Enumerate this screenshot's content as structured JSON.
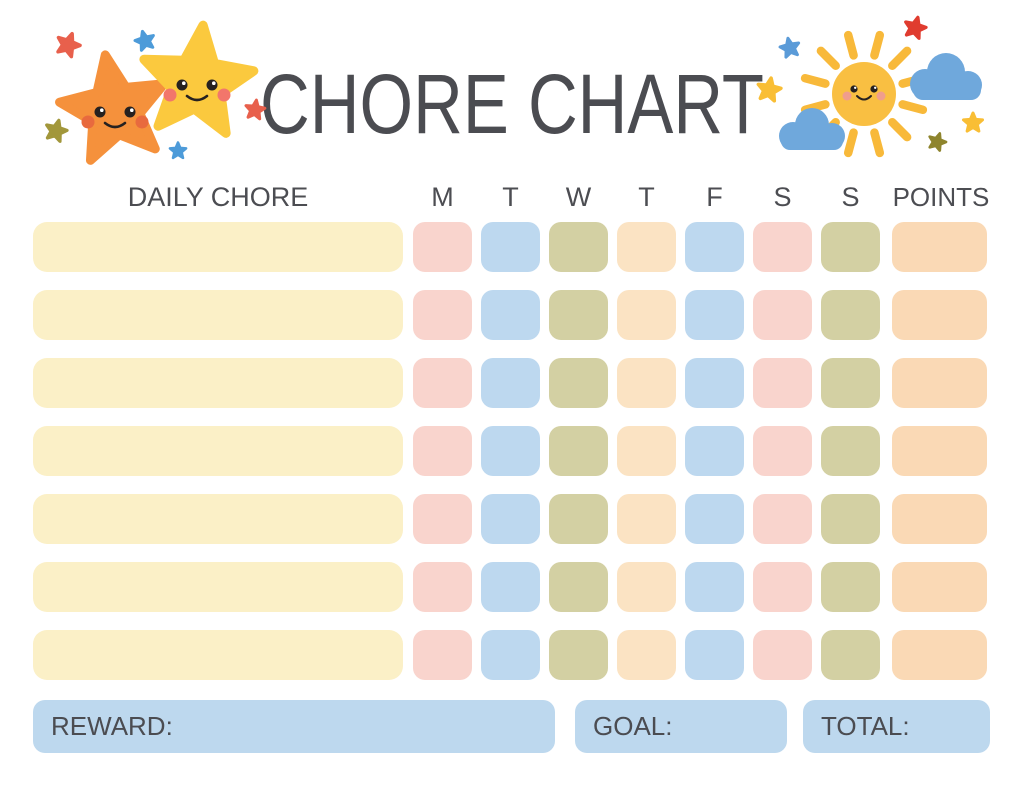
{
  "title": "CHORE CHART",
  "header": {
    "daily_chore": "DAILY CHORE",
    "days": [
      "M",
      "T",
      "W",
      "T",
      "F",
      "S",
      "S"
    ],
    "points": "POINTS"
  },
  "grid": {
    "row_count": 7,
    "day_count": 7
  },
  "footer": {
    "reward": "REWARD:",
    "goal": "GOAL:",
    "total": "TOTAL:"
  },
  "colors": {
    "text": "#4C4D52",
    "chore_bar": "#FBF0C7",
    "day_cells": [
      "#F9D4CD",
      "#BDD8EF",
      "#D3D0A3",
      "#FBE3C3",
      "#BDD8EF",
      "#F9D4CD",
      "#D3D0A3"
    ],
    "points_cell": "#FAD9B5",
    "footer_box": "#BDD8EE"
  },
  "decorations": {
    "left": {
      "description": "two smiling stars with small scattered stars",
      "big_star_orange": "#F5913C",
      "big_star_orange_cheek": "#E86A3E",
      "big_star_yellow": "#FBC93E",
      "big_star_yellow_cheek": "#F2766B",
      "small_star_red": "#E8604C",
      "small_star_blue": "#4D9BD9",
      "small_star_olive": "#A2973B",
      "eye": "#262120"
    },
    "right": {
      "description": "smiling sun with two clouds and small scattered stars",
      "sun": "#F9BF42",
      "ray": "#F8B93A",
      "sun_cheek": "#F09D8C",
      "cloud": "#6FA8DC",
      "small_star_red": "#E03C2F",
      "small_star_blue": "#5B9BD8",
      "small_star_yellow": "#F9BE35",
      "small_star_olive": "#8E842D",
      "eye": "#262120"
    }
  }
}
